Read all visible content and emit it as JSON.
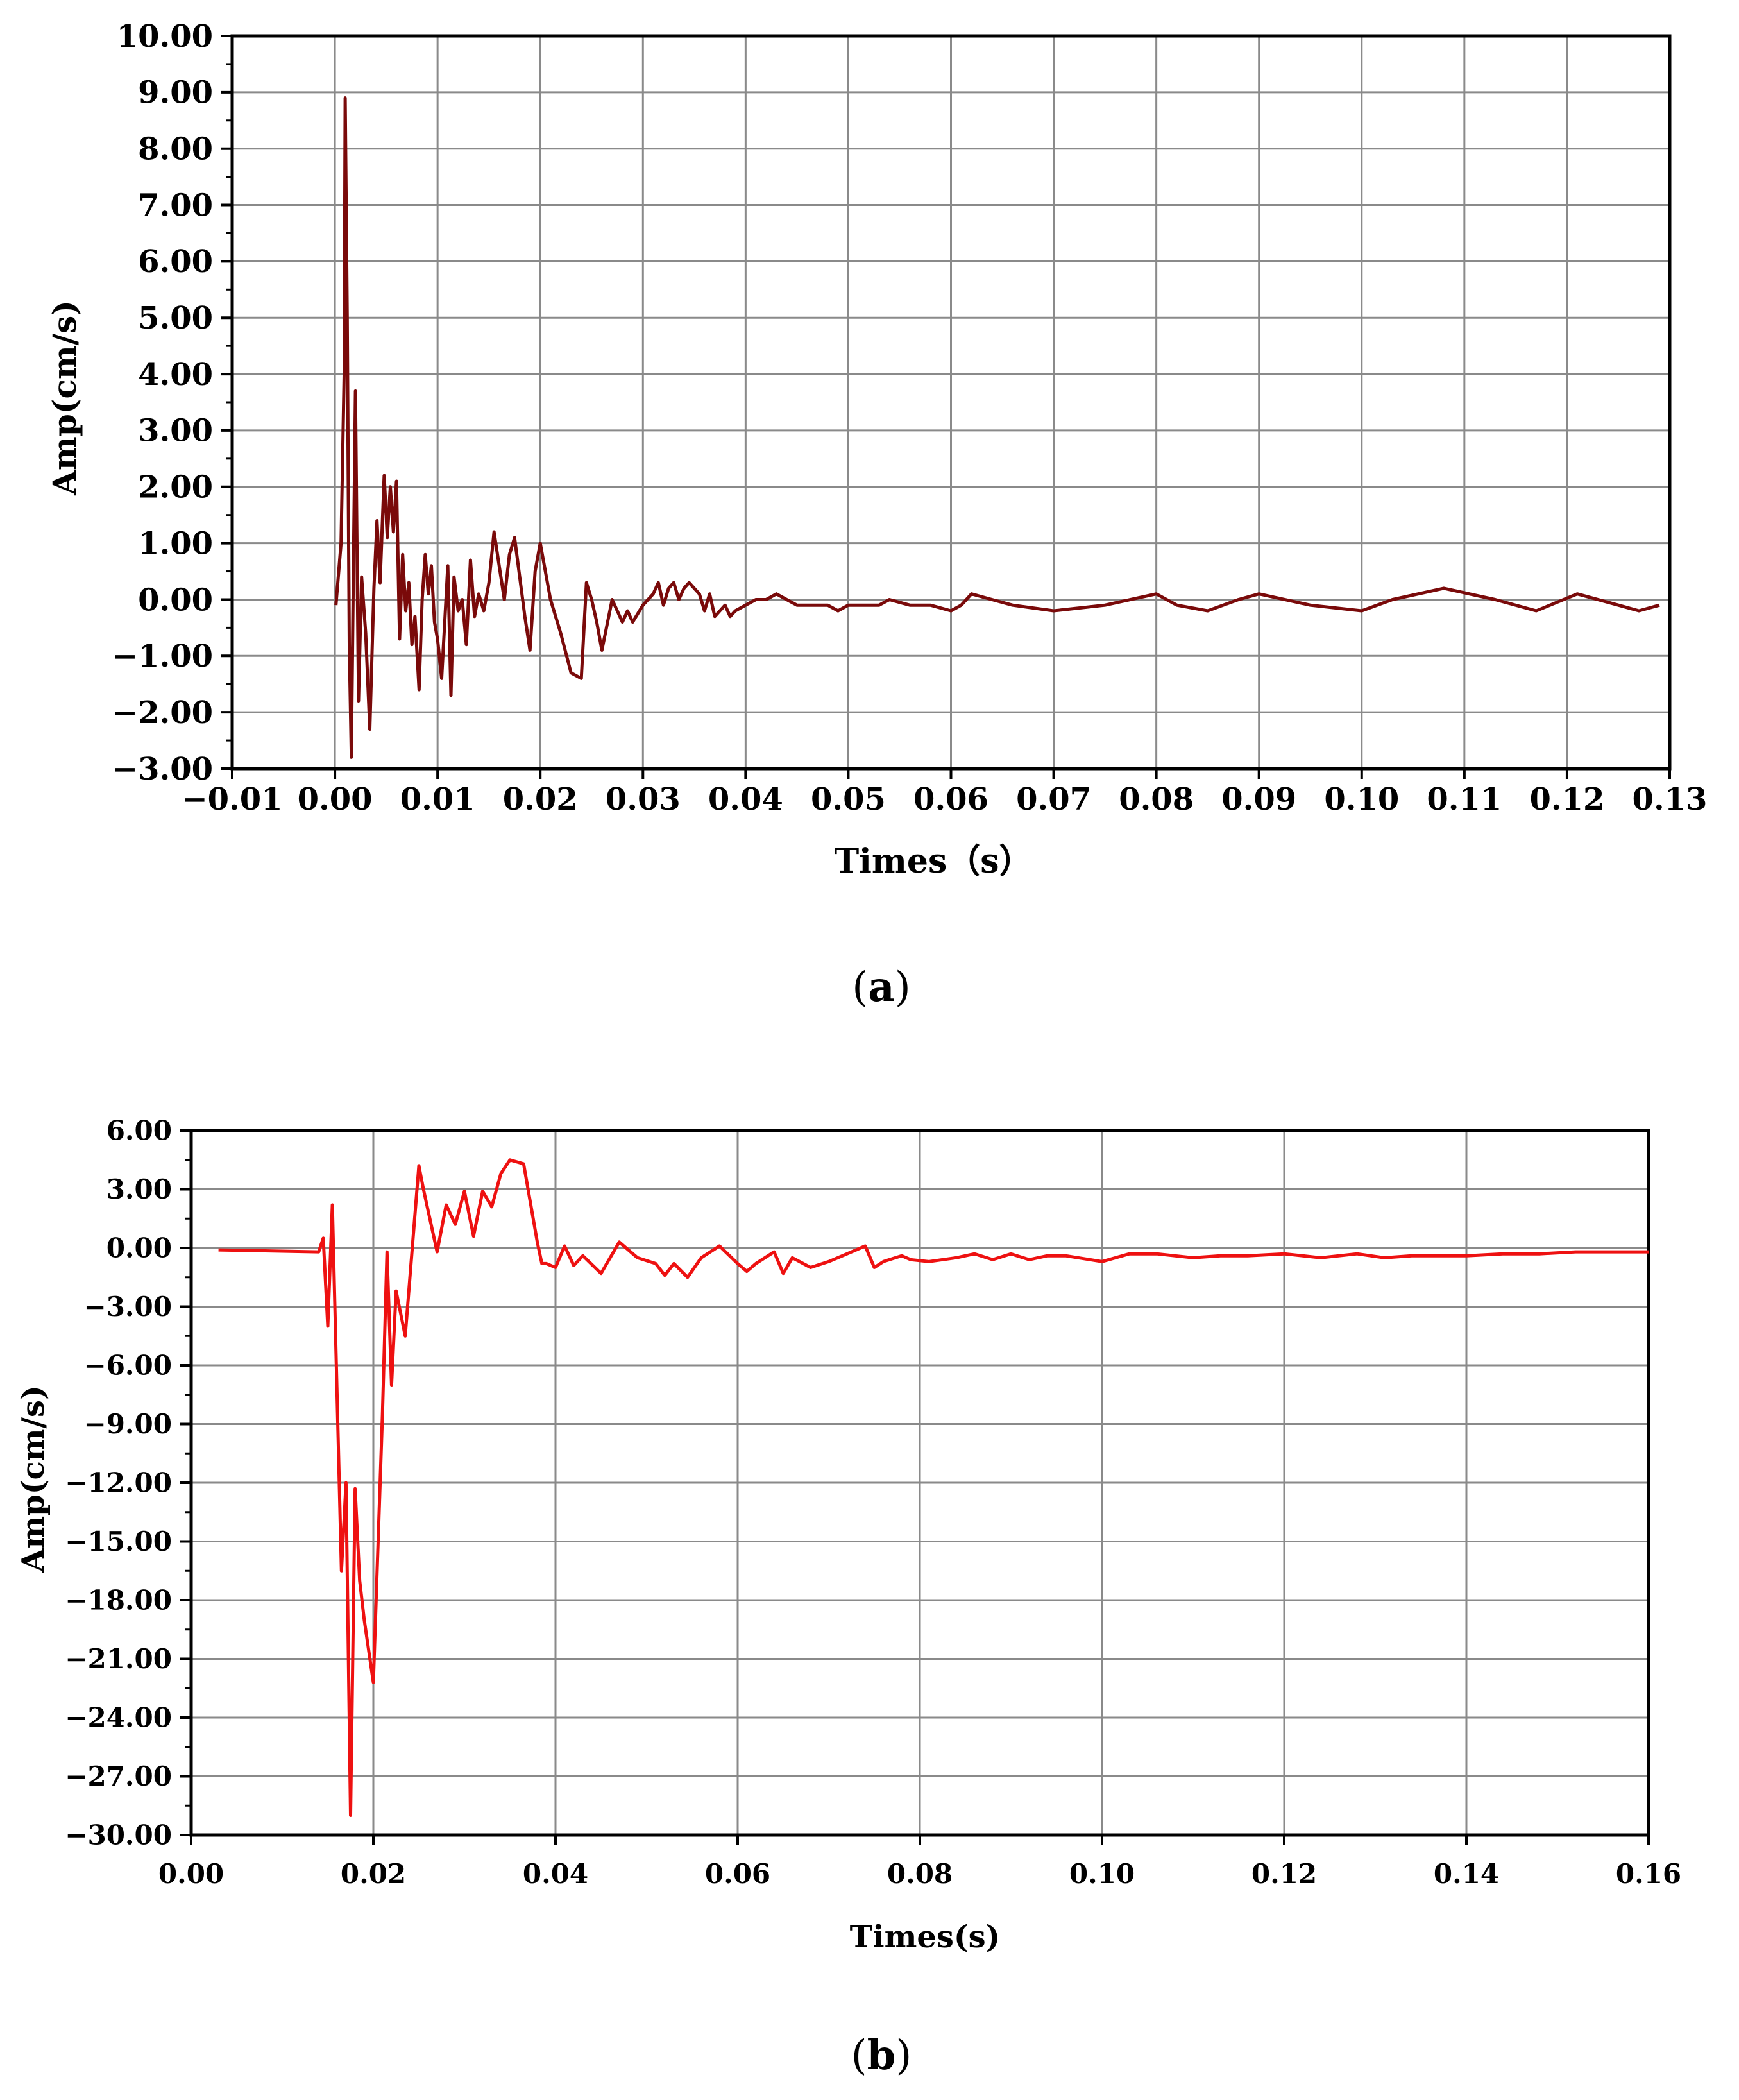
{
  "chart_data": [
    {
      "type": "line",
      "panel": "a",
      "caption_letter": "a",
      "xlabel": "Times（s）",
      "ylabel": "Amp(cm/s)",
      "xlim": [
        -0.01,
        0.13
      ],
      "ylim": [
        -3.0,
        10.0
      ],
      "x_ticks": [
        "−0.01",
        "0.00",
        "0.01",
        "0.02",
        "0.03",
        "0.04",
        "0.05",
        "0.06",
        "0.07",
        "0.08",
        "0.09",
        "0.10",
        "0.11",
        "0.12",
        "0.13"
      ],
      "y_ticks": [
        "10.00",
        "9.00",
        "8.00",
        "7.00",
        "6.00",
        "5.00",
        "4.00",
        "3.00",
        "2.00",
        "1.00",
        "0.00",
        "−1.00",
        "−2.00",
        "−3.00"
      ],
      "grid": true,
      "line_color": "#7a0a0a",
      "series": [
        {
          "x": [
            0.0001,
            0.0006,
            0.0009,
            0.001,
            0.0012,
            0.0014,
            0.0016,
            0.0018,
            0.002,
            0.0023,
            0.0026,
            0.003,
            0.0034,
            0.0038,
            0.0041,
            0.0044,
            0.0048,
            0.0051,
            0.0054,
            0.0057,
            0.006,
            0.0063,
            0.0066,
            0.0069,
            0.0072,
            0.0075,
            0.0078,
            0.0082,
            0.0085,
            0.0088,
            0.0091,
            0.0094,
            0.0097,
            0.01,
            0.0104,
            0.0107,
            0.011,
            0.0113,
            0.0116,
            0.012,
            0.0124,
            0.0128,
            0.0132,
            0.0136,
            0.014,
            0.0145,
            0.015,
            0.0155,
            0.016,
            0.0165,
            0.017,
            0.0175,
            0.018,
            0.0185,
            0.019,
            0.0195,
            0.02,
            0.021,
            0.022,
            0.023,
            0.024,
            0.0245,
            0.025,
            0.0255,
            0.026,
            0.027,
            0.028,
            0.0285,
            0.029,
            0.03,
            0.031,
            0.0315,
            0.032,
            0.0325,
            0.033,
            0.0335,
            0.034,
            0.0345,
            0.035,
            0.0355,
            0.036,
            0.0365,
            0.037,
            0.0375,
            0.038,
            0.0385,
            0.039,
            0.04,
            0.041,
            0.0415,
            0.042,
            0.043,
            0.044,
            0.045,
            0.046,
            0.047,
            0.048,
            0.049,
            0.05,
            0.051,
            0.052,
            0.053,
            0.054,
            0.056,
            0.058,
            0.06,
            0.061,
            0.062,
            0.064,
            0.066,
            0.07,
            0.075,
            0.08,
            0.082,
            0.085,
            0.088,
            0.09,
            0.095,
            0.1,
            0.103,
            0.108,
            0.113,
            0.117,
            0.121,
            0.125,
            0.127,
            0.129
          ],
          "y": [
            -0.1,
            1.0,
            4.0,
            8.9,
            5.0,
            -0.8,
            -2.8,
            0.5,
            3.7,
            -1.8,
            0.4,
            -0.6,
            -2.3,
            0.2,
            1.4,
            0.3,
            2.2,
            1.1,
            2.0,
            1.2,
            2.1,
            -0.7,
            0.8,
            -0.2,
            0.3,
            -0.8,
            -0.3,
            -1.6,
            0.0,
            0.8,
            0.1,
            0.6,
            -0.4,
            -0.7,
            -1.4,
            -0.4,
            0.6,
            -1.7,
            0.4,
            -0.2,
            0.0,
            -0.8,
            0.7,
            -0.3,
            0.1,
            -0.2,
            0.3,
            1.2,
            0.6,
            0.0,
            0.8,
            1.1,
            0.4,
            -0.3,
            -0.9,
            0.5,
            1.0,
            0.0,
            -0.6,
            -1.3,
            -1.4,
            0.3,
            0.0,
            -0.4,
            -0.9,
            0.0,
            -0.4,
            -0.2,
            -0.4,
            -0.1,
            0.1,
            0.3,
            -0.1,
            0.2,
            0.3,
            0.0,
            0.2,
            0.3,
            0.2,
            0.1,
            -0.2,
            0.1,
            -0.3,
            -0.2,
            -0.1,
            -0.3,
            -0.2,
            -0.1,
            0.0,
            0.0,
            0.0,
            0.1,
            0.0,
            -0.1,
            -0.1,
            -0.1,
            -0.1,
            -0.2,
            -0.1,
            -0.1,
            -0.1,
            -0.1,
            0.0,
            -0.1,
            -0.1,
            -0.2,
            -0.1,
            0.1,
            0.0,
            -0.1,
            -0.2,
            -0.1,
            0.1,
            -0.1,
            -0.2,
            0.0,
            0.1,
            -0.1,
            -0.2,
            0.0,
            0.2,
            0.0,
            -0.2,
            0.1,
            -0.1,
            -0.2,
            -0.1
          ]
        }
      ]
    },
    {
      "type": "line",
      "panel": "b",
      "caption_letter": "b",
      "xlabel": "Times(s)",
      "ylabel": "Amp(cm/s)",
      "xlim": [
        0.0,
        0.16
      ],
      "ylim": [
        -30.0,
        6.0
      ],
      "x_ticks": [
        "0.00",
        "0.02",
        "0.04",
        "0.06",
        "0.08",
        "0.10",
        "0.12",
        "0.14",
        "0.16"
      ],
      "y_ticks": [
        "6.00",
        "3.00",
        "0.00",
        "−3.00",
        "−6.00",
        "−9.00",
        "−12.00",
        "−15.00",
        "−18.00",
        "−21.00",
        "−24.00",
        "−27.00",
        "−30.00"
      ],
      "grid": true,
      "line_color": "#ee1111",
      "series": [
        {
          "x": [
            0.003,
            0.014,
            0.0145,
            0.015,
            0.0155,
            0.0165,
            0.017,
            0.0175,
            0.018,
            0.0185,
            0.019,
            0.02,
            0.021,
            0.0215,
            0.022,
            0.0225,
            0.0235,
            0.025,
            0.0255,
            0.027,
            0.028,
            0.029,
            0.03,
            0.031,
            0.032,
            0.033,
            0.034,
            0.035,
            0.0365,
            0.038,
            0.0385,
            0.039,
            0.04,
            0.041,
            0.042,
            0.043,
            0.045,
            0.047,
            0.049,
            0.051,
            0.052,
            0.053,
            0.0545,
            0.056,
            0.058,
            0.06,
            0.061,
            0.062,
            0.064,
            0.065,
            0.066,
            0.068,
            0.07,
            0.072,
            0.074,
            0.075,
            0.076,
            0.078,
            0.079,
            0.081,
            0.084,
            0.086,
            0.088,
            0.09,
            0.092,
            0.094,
            0.096,
            0.1,
            0.103,
            0.106,
            0.11,
            0.113,
            0.116,
            0.12,
            0.124,
            0.128,
            0.131,
            0.134,
            0.137,
            0.14,
            0.144,
            0.148,
            0.152,
            0.156,
            0.16
          ],
          "y": [
            -0.1,
            -0.2,
            0.5,
            -4.0,
            2.2,
            -16.5,
            -12.0,
            -29.0,
            -12.3,
            -17.0,
            -19.0,
            -22.2,
            -8.5,
            -0.2,
            -7.0,
            -2.2,
            -4.5,
            4.2,
            3.0,
            -0.2,
            2.2,
            1.2,
            2.9,
            0.6,
            2.9,
            2.1,
            3.8,
            4.5,
            4.3,
            0.3,
            -0.8,
            -0.8,
            -1.0,
            0.1,
            -0.9,
            -0.4,
            -1.3,
            0.3,
            -0.5,
            -0.8,
            -1.4,
            -0.8,
            -1.5,
            -0.5,
            0.1,
            -0.8,
            -1.2,
            -0.8,
            -0.2,
            -1.3,
            -0.5,
            -1.0,
            -0.7,
            -0.3,
            0.1,
            -1.0,
            -0.7,
            -0.4,
            -0.6,
            -0.7,
            -0.5,
            -0.3,
            -0.6,
            -0.3,
            -0.6,
            -0.4,
            -0.4,
            -0.7,
            -0.3,
            -0.3,
            -0.5,
            -0.4,
            -0.4,
            -0.3,
            -0.5,
            -0.3,
            -0.5,
            -0.4,
            -0.4,
            -0.4,
            -0.3,
            -0.3,
            -0.2,
            -0.2,
            -0.2
          ]
        }
      ]
    }
  ]
}
